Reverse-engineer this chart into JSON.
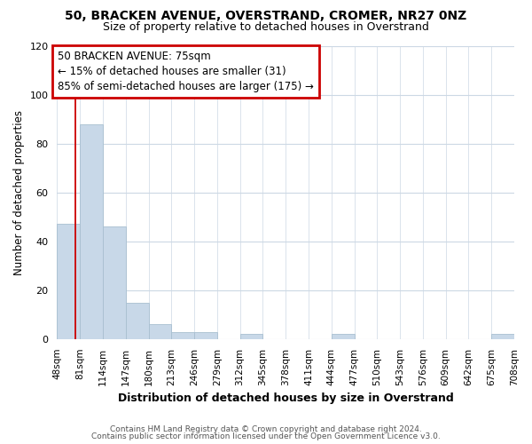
{
  "title": "50, BRACKEN AVENUE, OVERSTRAND, CROMER, NR27 0NZ",
  "subtitle": "Size of property relative to detached houses in Overstrand",
  "xlabel": "Distribution of detached houses by size in Overstrand",
  "ylabel": "Number of detached properties",
  "footnote1": "Contains HM Land Registry data © Crown copyright and database right 2024.",
  "footnote2": "Contains public sector information licensed under the Open Government Licence v3.0.",
  "bar_edges": [
    48,
    81,
    114,
    147,
    180,
    213,
    246,
    279,
    312,
    345,
    378,
    411,
    444,
    477,
    510,
    543,
    576,
    609,
    642,
    675,
    708
  ],
  "bar_heights": [
    47,
    88,
    46,
    15,
    6,
    3,
    3,
    0,
    2,
    0,
    0,
    0,
    2,
    0,
    0,
    0,
    0,
    0,
    0,
    2
  ],
  "bar_color": "#c8d8e8",
  "bar_edge_color": "#a8bfd0",
  "ann_line1": "50 BRACKEN AVENUE: 75sqm",
  "ann_line2": "← 15% of detached houses are smaller (31)",
  "ann_line3": "85% of semi-detached houses are larger (175) →",
  "vline_x": 75,
  "vline_color": "#cc0000",
  "ylim": [
    0,
    120
  ],
  "yticks": [
    0,
    20,
    40,
    60,
    80,
    100,
    120
  ],
  "tick_labels": [
    "48sqm",
    "81sqm",
    "114sqm",
    "147sqm",
    "180sqm",
    "213sqm",
    "246sqm",
    "279sqm",
    "312sqm",
    "345sqm",
    "378sqm",
    "411sqm",
    "444sqm",
    "477sqm",
    "510sqm",
    "543sqm",
    "576sqm",
    "609sqm",
    "642sqm",
    "675sqm",
    "708sqm"
  ],
  "background_color": "#ffffff",
  "grid_color": "#ccd8e4"
}
